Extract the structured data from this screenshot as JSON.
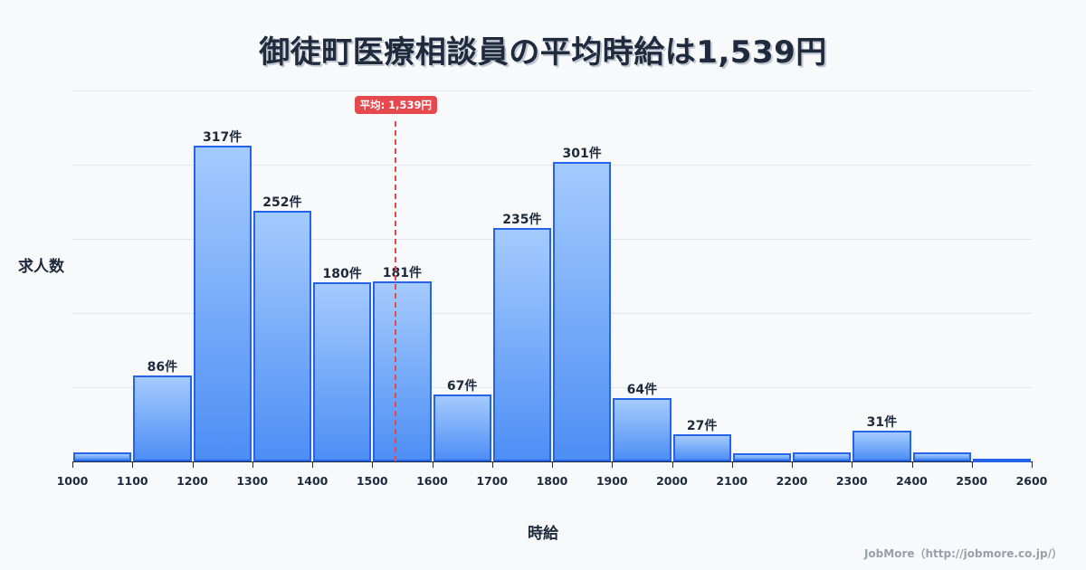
{
  "title": "御徒町医療相談員の平均時給は1,539円",
  "y_axis_label": "求人数",
  "x_axis_label": "時給",
  "mean_badge": "平均: 1,539円",
  "credit": "JobMore（http://jobmore.co.jp/）",
  "colors": {
    "bar_border": "#2563eb",
    "bar_top": "#a5cbfd",
    "bar_bottom": "#4d8ef5",
    "mean": "#e5484d",
    "title": "#1f2a3d"
  },
  "chart_data": {
    "type": "bar",
    "title": "御徒町医療相談員の平均時給は1,539円",
    "xlabel": "時給",
    "ylabel": "求人数",
    "bin_edges": [
      1000,
      1100,
      1200,
      1300,
      1400,
      1500,
      1600,
      1700,
      1800,
      1900,
      2000,
      2100,
      2200,
      2300,
      2400,
      2500,
      2600
    ],
    "categories": [
      "1000-1100",
      "1100-1200",
      "1200-1300",
      "1300-1400",
      "1400-1500",
      "1500-1600",
      "1600-1700",
      "1700-1800",
      "1800-1900",
      "1900-2000",
      "2000-2100",
      "2100-2200",
      "2200-2300",
      "2300-2400",
      "2400-2500",
      "2500-2600"
    ],
    "values": [
      9,
      86,
      317,
      252,
      180,
      181,
      67,
      235,
      301,
      64,
      27,
      8,
      9,
      31,
      9,
      2
    ],
    "bar_labels": [
      "",
      "86件",
      "317件",
      "252件",
      "180件",
      "181件",
      "67件",
      "235件",
      "301件",
      "64件",
      "27件",
      "",
      "",
      "31件",
      "",
      ""
    ],
    "x_tick_labels": [
      "1000",
      "1100",
      "1200",
      "1300",
      "1400",
      "1500",
      "1600",
      "1700",
      "1800",
      "1900",
      "2000",
      "2100",
      "2200",
      "2300",
      "2400",
      "2500",
      "2600"
    ],
    "mean": 1539,
    "mean_label": "平均: 1,539円",
    "ylim": [
      0,
      372
    ],
    "grid": true,
    "legend": "none"
  }
}
